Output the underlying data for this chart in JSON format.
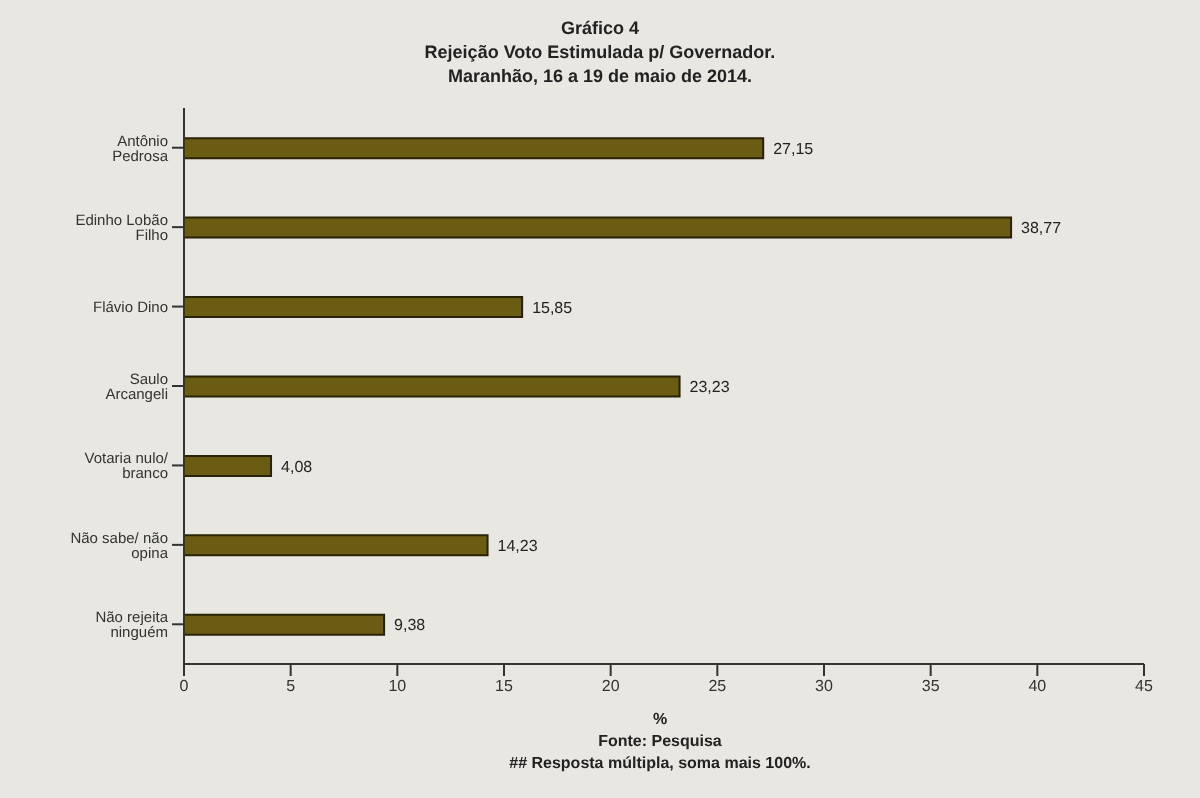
{
  "chart_data": {
    "type": "bar",
    "orientation": "horizontal",
    "title": "Gráfico 4",
    "subtitle": "Rejeição Voto Estimulada p/ Governador.\nMaranhão, 16 a 19 de maio de 2014.",
    "xlabel": "%",
    "annotations": [
      "Fonte: Pesquisa",
      "## Resposta múltipla, soma mais 100%."
    ],
    "categories": [
      "Antônio Pedrosa",
      "Edinho Lobão Filho",
      "Flávio Dino",
      "Saulo Arcangeli",
      "Votaria nulo/ branco",
      "Não sabe/ não opina",
      "Não rejeita ninguém"
    ],
    "values": [
      27.15,
      38.77,
      15.85,
      23.23,
      4.08,
      14.23,
      9.38
    ],
    "value_labels": [
      "27,15",
      "38,77",
      "15,85",
      "23,23",
      "4,08",
      "14,23",
      "9,38"
    ],
    "color": "#6b5c14",
    "xlim": [
      0,
      45
    ],
    "xticks": [
      0,
      5,
      10,
      15,
      20,
      25,
      30,
      35,
      40,
      45
    ],
    "grid": false
  }
}
